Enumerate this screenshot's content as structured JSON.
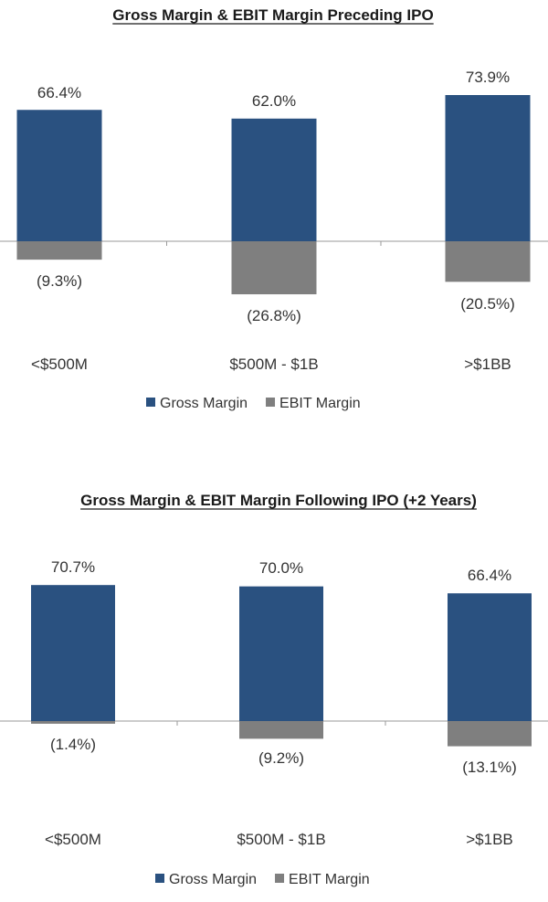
{
  "chart_data": [
    {
      "type": "bar",
      "title": "Gross Margin & EBIT Margin Preceding IPO",
      "categories": [
        "<$500M",
        "$500M - $1B",
        ">$1BB"
      ],
      "series": [
        {
          "name": "Gross Margin",
          "values": [
            66.4,
            62.0,
            73.9
          ],
          "labels": [
            "66.4%",
            "62.0%",
            "73.9%"
          ],
          "color": "#2a5180"
        },
        {
          "name": "EBIT Margin",
          "values": [
            -9.3,
            -26.8,
            -20.5
          ],
          "labels": [
            "(9.3%)",
            "(26.8%)",
            "(20.5%)"
          ],
          "color": "#7f7f7f"
        }
      ],
      "legend": "bottom-center",
      "grid": false
    },
    {
      "type": "bar",
      "title": "Gross Margin & EBIT Margin Following IPO (+2 Years)",
      "categories": [
        "<$500M",
        "$500M - $1B",
        ">$1BB"
      ],
      "series": [
        {
          "name": "Gross Margin",
          "values": [
            70.7,
            70.0,
            66.4
          ],
          "labels": [
            "70.7%",
            "70.0%",
            "66.4%"
          ],
          "color": "#2a5180"
        },
        {
          "name": "EBIT Margin",
          "values": [
            -1.4,
            -9.2,
            -13.1
          ],
          "labels": [
            "(1.4%)",
            "(9.2%)",
            "(13.1%)"
          ],
          "color": "#7f7f7f"
        }
      ],
      "legend": "bottom-center",
      "grid": false
    }
  ]
}
